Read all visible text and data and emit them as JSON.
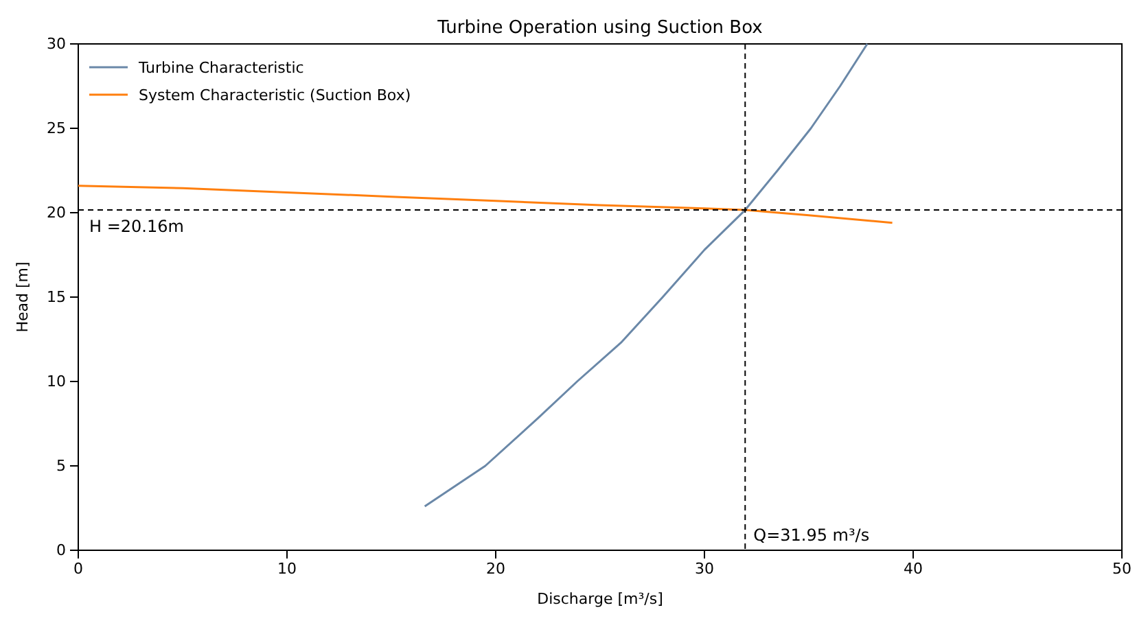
{
  "chart_data": {
    "type": "line",
    "title": "Turbine Operation using Suction Box",
    "xlabel": "Discharge [m³/s]",
    "ylabel": "Head [m]",
    "xlim": [
      0,
      50
    ],
    "ylim": [
      0,
      30
    ],
    "xticks": [
      0,
      10,
      20,
      30,
      40,
      50
    ],
    "yticks": [
      0,
      5,
      10,
      15,
      20,
      25,
      30
    ],
    "grid": false,
    "legend": "top left",
    "series": [
      {
        "name": "Turbine Characteristic",
        "color": "#6a88a8",
        "x": [
          16.6,
          19.5,
          22,
          23.9,
          26,
          28,
          30,
          31.95,
          33.5,
          35.1,
          36.5,
          37.8
        ],
        "values": [
          2.6,
          5,
          7.8,
          10,
          12.3,
          15,
          17.8,
          20.16,
          22.5,
          25,
          27.5,
          30
        ]
      },
      {
        "name": "System Characteristic (Suction Box)",
        "color": "#ff7f0e",
        "x": [
          0,
          5,
          10,
          15,
          20,
          25,
          30,
          31.95,
          35,
          39
        ],
        "values": [
          21.6,
          21.45,
          21.2,
          20.95,
          20.7,
          20.45,
          20.25,
          20.16,
          19.85,
          19.4
        ]
      }
    ],
    "ref_lines": [
      {
        "axis": "x",
        "value": 31.95,
        "label": "Q=31.95 m³/s",
        "color": "#000000",
        "line_style": "dashed"
      },
      {
        "axis": "y",
        "value": 20.16,
        "label": "H =20.16m",
        "color": "#000000",
        "line_style": "dashed"
      }
    ]
  }
}
